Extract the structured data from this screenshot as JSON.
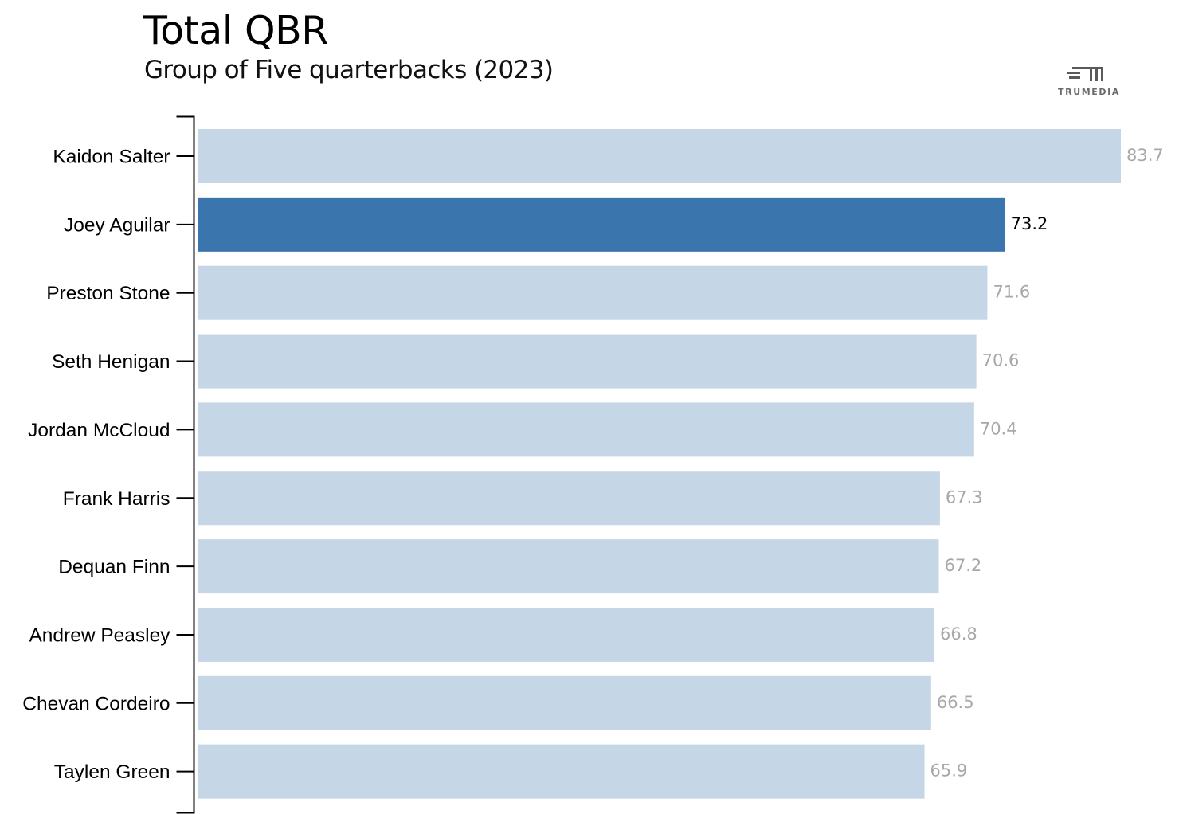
{
  "header": {
    "title": "Total QBR",
    "subtitle": "Group of Five quarterbacks (2023)"
  },
  "logo": {
    "text": "TRUMEDIA",
    "icon": "trumedia-logo-icon",
    "color": "#5a5a5a"
  },
  "colors": {
    "bar_default": "#c5d6e7",
    "bar_highlight": "#3b75ae",
    "label_default": "#a8a8a8",
    "label_highlight": "#000000",
    "axis": "#000000"
  },
  "chart_data": {
    "type": "bar",
    "orientation": "horizontal",
    "title": "Total QBR",
    "subtitle": "Group of Five quarterbacks (2023)",
    "categories": [
      "Kaidon Salter",
      "Joey Aguilar",
      "Preston Stone",
      "Seth Henigan",
      "Jordan McCloud",
      "Frank Harris",
      "Dequan Finn",
      "Andrew Peasley",
      "Chevan Cordeiro",
      "Taylen Green"
    ],
    "values": [
      83.7,
      73.2,
      71.6,
      70.6,
      70.4,
      67.3,
      67.2,
      66.8,
      66.5,
      65.9
    ],
    "data_labels": [
      "83.7",
      "73.2",
      "71.6",
      "70.6",
      "70.4",
      "67.3",
      "67.2",
      "66.8",
      "66.5",
      "65.9"
    ],
    "highlight": "Joey Aguilar",
    "xlim": [
      0,
      83.7
    ],
    "grid": false,
    "legend": false
  }
}
